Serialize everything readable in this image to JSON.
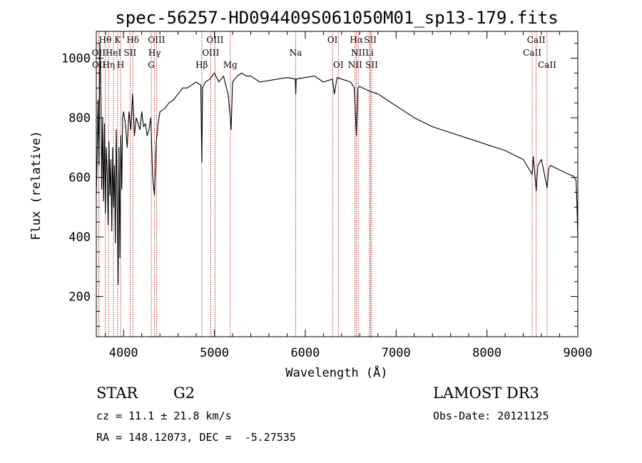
{
  "chart_data": {
    "type": "line",
    "title": "spec-56257-HD094409S061050M01_sp13-179.fits",
    "xlabel": "Wavelength (Å)",
    "ylabel": "Flux (relative)",
    "xlim": [
      3700,
      9000
    ],
    "ylim": [
      65,
      1090
    ],
    "x_ticks": [
      4000,
      5000,
      6000,
      7000,
      8000,
      9000
    ],
    "y_ticks": [
      200,
      400,
      600,
      800,
      1000
    ],
    "series": [
      {
        "name": "flux",
        "x": [
          3700,
          3710,
          3720,
          3730,
          3740,
          3750,
          3760,
          3770,
          3780,
          3790,
          3800,
          3810,
          3820,
          3830,
          3840,
          3850,
          3860,
          3870,
          3880,
          3890,
          3900,
          3910,
          3920,
          3930,
          3940,
          3950,
          3960,
          3970,
          3980,
          3990,
          4000,
          4020,
          4040,
          4060,
          4080,
          4100,
          4120,
          4140,
          4160,
          4180,
          4200,
          4220,
          4240,
          4260,
          4280,
          4300,
          4320,
          4340,
          4360,
          4380,
          4400,
          4450,
          4500,
          4550,
          4600,
          4650,
          4700,
          4750,
          4800,
          4850,
          4861,
          4870,
          4900,
          4950,
          5000,
          5050,
          5100,
          5150,
          5175,
          5184,
          5200,
          5250,
          5300,
          5350,
          5400,
          5450,
          5500,
          5600,
          5700,
          5800,
          5890,
          5895,
          5900,
          6000,
          6100,
          6200,
          6300,
          6320,
          6350,
          6400,
          6500,
          6540,
          6563,
          6580,
          6600,
          6700,
          6800,
          6900,
          7000,
          7200,
          7400,
          7600,
          7800,
          8000,
          8200,
          8400,
          8498,
          8510,
          8542,
          8560,
          8600,
          8662,
          8680,
          8700,
          8800,
          8900,
          8950,
          8980,
          8990,
          9000
        ],
        "values": [
          540,
          680,
          860,
          640,
          1050,
          900,
          560,
          800,
          520,
          780,
          480,
          700,
          620,
          440,
          720,
          540,
          660,
          420,
          700,
          500,
          640,
          380,
          760,
          520,
          240,
          700,
          330,
          740,
          560,
          800,
          820,
          780,
          700,
          820,
          760,
          880,
          740,
          800,
          780,
          760,
          820,
          770,
          780,
          740,
          760,
          800,
          600,
          540,
          720,
          780,
          820,
          830,
          850,
          860,
          880,
          900,
          900,
          910,
          920,
          910,
          650,
          900,
          920,
          930,
          950,
          920,
          940,
          880,
          800,
          760,
          920,
          940,
          950,
          940,
          940,
          930,
          920,
          925,
          930,
          935,
          930,
          880,
          930,
          935,
          940,
          920,
          930,
          880,
          935,
          930,
          920,
          900,
          740,
          900,
          905,
          890,
          880,
          860,
          840,
          800,
          770,
          750,
          730,
          710,
          690,
          660,
          610,
          670,
          555,
          640,
          660,
          565,
          630,
          640,
          625,
          610,
          605,
          590,
          520,
          400
        ]
      }
    ],
    "lines": [
      {
        "name": "OII",
        "x": 3727,
        "row": 1
      },
      {
        "name": "OII",
        "x": 3729,
        "row": 2
      },
      {
        "name": "Hθ",
        "x": 3798,
        "row": 0
      },
      {
        "name": "Hη",
        "x": 3835,
        "row": 2
      },
      {
        "name": "HeI",
        "x": 3889,
        "row": 1
      },
      {
        "name": "K",
        "x": 3934,
        "row": 0
      },
      {
        "name": "H",
        "x": 3968,
        "row": 2
      },
      {
        "name": "SII",
        "x": 4072,
        "row": 1
      },
      {
        "name": "Hδ",
        "x": 4102,
        "row": 0
      },
      {
        "name": "G",
        "x": 4305,
        "row": 2
      },
      {
        "name": "Hγ",
        "x": 4341,
        "row": 1
      },
      {
        "name": "OIII",
        "x": 4363,
        "row": 0
      },
      {
        "name": "Hβ",
        "x": 4861,
        "row": 2
      },
      {
        "name": "OIII",
        "x": 4959,
        "row": 1
      },
      {
        "name": "OIII",
        "x": 5007,
        "row": 0
      },
      {
        "name": "Mg",
        "x": 5175,
        "row": 2
      },
      {
        "name": "Na",
        "x": 5894,
        "row": 1
      },
      {
        "name": "OI",
        "x": 6300,
        "row": 0
      },
      {
        "name": "OI",
        "x": 6364,
        "row": 2
      },
      {
        "name": "NII",
        "x": 6548,
        "row": 2
      },
      {
        "name": "Hα",
        "x": 6563,
        "row": 0
      },
      {
        "name": "NII",
        "x": 6583,
        "row": 1
      },
      {
        "name": "Li",
        "x": 6708,
        "row": 1
      },
      {
        "name": "SII",
        "x": 6716,
        "row": 0
      },
      {
        "name": "SII",
        "x": 6731,
        "row": 2
      },
      {
        "name": "CaII",
        "x": 8498,
        "row": 1
      },
      {
        "name": "CaII",
        "x": 8542,
        "row": 0
      },
      {
        "name": "CaII",
        "x": 8662,
        "row": 2
      }
    ]
  },
  "info": {
    "class": "STAR",
    "subclass": "G2",
    "survey": "LAMOST DR3",
    "cz": "cz = 11.1 ± 21.8 km/s",
    "obs_date": "Obs-Date: 20121125",
    "coords": "RA = 148.12073, DEC =  -5.27535"
  },
  "colors": {
    "line_marker": "#b22222",
    "spectrum": "#000000"
  }
}
